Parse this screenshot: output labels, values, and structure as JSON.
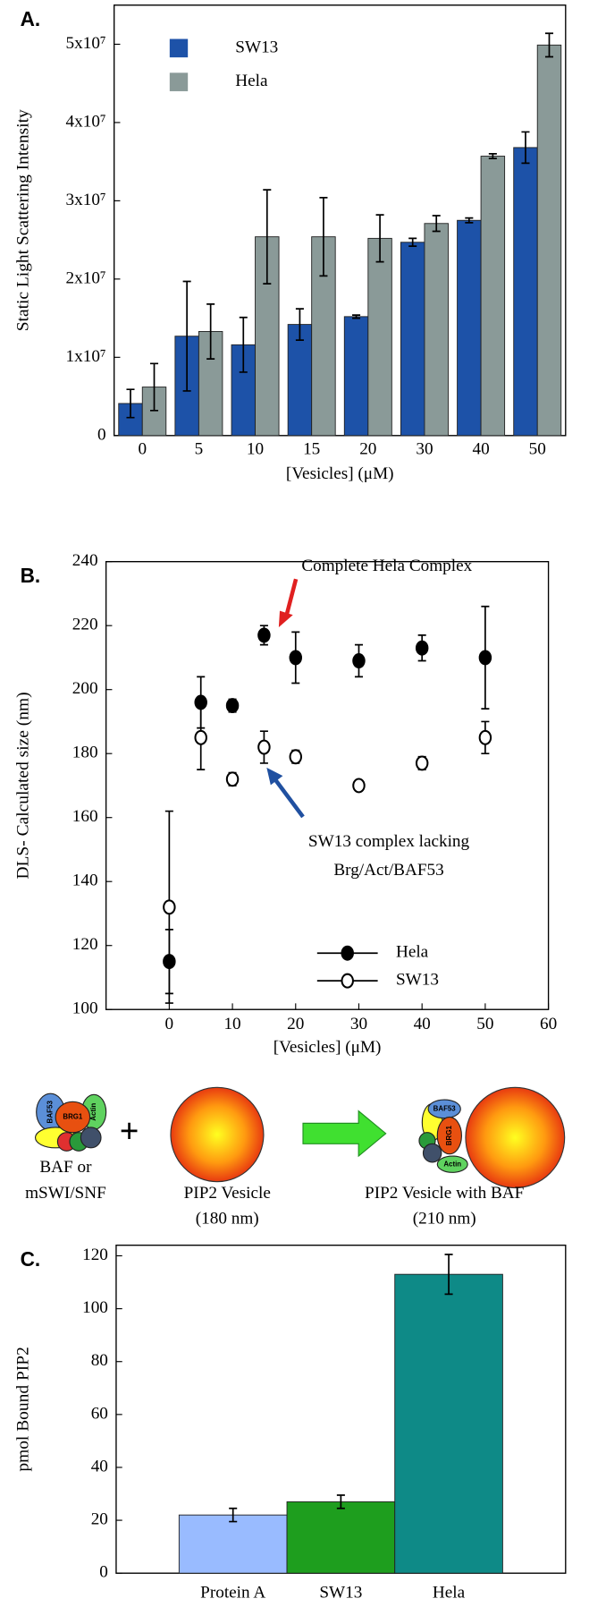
{
  "chart_data": [
    {
      "type": "bar",
      "panel_label": "A.",
      "y_label": "Static Light Scattering Intensity",
      "x_label": "[Vesicles] (μM)",
      "categories": [
        "0",
        "5",
        "10",
        "15",
        "20",
        "30",
        "40",
        "50"
      ],
      "series": [
        {
          "name": "SW13",
          "color": "#1d52a8",
          "values": [
            4100000,
            12700000,
            11600000,
            14200000,
            15200000,
            24700000,
            27500000,
            36800000
          ],
          "errors": [
            1800000,
            7000000,
            3500000,
            2000000,
            200000,
            500000,
            300000,
            2000000
          ]
        },
        {
          "name": "Hela",
          "color": "#8a9a98",
          "values": [
            6200000,
            13300000,
            25400000,
            25400000,
            25200000,
            27100000,
            35700000,
            49900000
          ],
          "errors": [
            3000000,
            3500000,
            6000000,
            5000000,
            3000000,
            1000000,
            300000,
            1500000
          ]
        }
      ],
      "ylim": [
        0,
        55000000
      ],
      "yticks": [
        0,
        {
          "value": 10000000,
          "label": "1x10⁷"
        },
        {
          "value": 20000000,
          "label": "2x10⁷"
        },
        {
          "value": 30000000,
          "label": "3x10⁷"
        },
        {
          "value": 40000000,
          "label": "4x10⁷"
        },
        {
          "value": 50000000,
          "label": "5x10⁷"
        }
      ],
      "legend": "upper left"
    },
    {
      "type": "scatter",
      "panel_label": "B.",
      "y_label": "DLS- Calculated size (nm)",
      "x_label": "[Vesicles] (μM)",
      "annotations": [
        "Complete Hela Complex",
        "SW13 complex lacking",
        "Brg/Act/BAF53"
      ],
      "x": [
        0,
        5,
        10,
        15,
        20,
        30,
        40,
        50
      ],
      "series": [
        {
          "name": "Hela",
          "color": "#000000",
          "filled": true,
          "values": [
            115,
            196,
            195,
            217,
            210,
            209,
            213,
            210
          ],
          "errors": [
            10,
            8,
            2,
            3,
            8,
            5,
            4,
            16
          ]
        },
        {
          "name": "SW13",
          "color": "#000000",
          "filled": false,
          "values": [
            132,
            185,
            172,
            182,
            179,
            170,
            177,
            185
          ],
          "errors": [
            30,
            10,
            2,
            5,
            2,
            1,
            2,
            5
          ]
        }
      ],
      "xlim": [
        -10,
        60
      ],
      "xticks": [
        0,
        10,
        20,
        30,
        40,
        50,
        60
      ],
      "ylim": [
        100,
        240
      ],
      "yticks": [
        100,
        120,
        140,
        160,
        180,
        200,
        220,
        240
      ],
      "legend": "lower center"
    },
    {
      "type": "bar",
      "panel_label": "C.",
      "y_label": "pmol Bound PIP2",
      "categories": [
        "Protein A",
        "SW13",
        "Hela"
      ],
      "values": [
        22,
        27,
        113
      ],
      "errors": [
        2.5,
        2.5,
        7.5
      ],
      "colors": [
        "#99bbff",
        "#1e9e1e",
        "#0e8a87"
      ],
      "ylim": [
        0,
        124
      ],
      "yticks": [
        0,
        20,
        40,
        60,
        80,
        100,
        120
      ]
    }
  ],
  "diagram": {
    "complex_labels": [
      "BAF53",
      "BRG1",
      "Actin"
    ],
    "plus": "+",
    "left_caption": [
      "BAF or",
      "mSWI/SNF"
    ],
    "middle_caption": [
      "PIP2 Vesicle",
      "(180 nm)"
    ],
    "right_caption": [
      "PIP2 Vesicle with BAF",
      "(210 nm)"
    ]
  }
}
